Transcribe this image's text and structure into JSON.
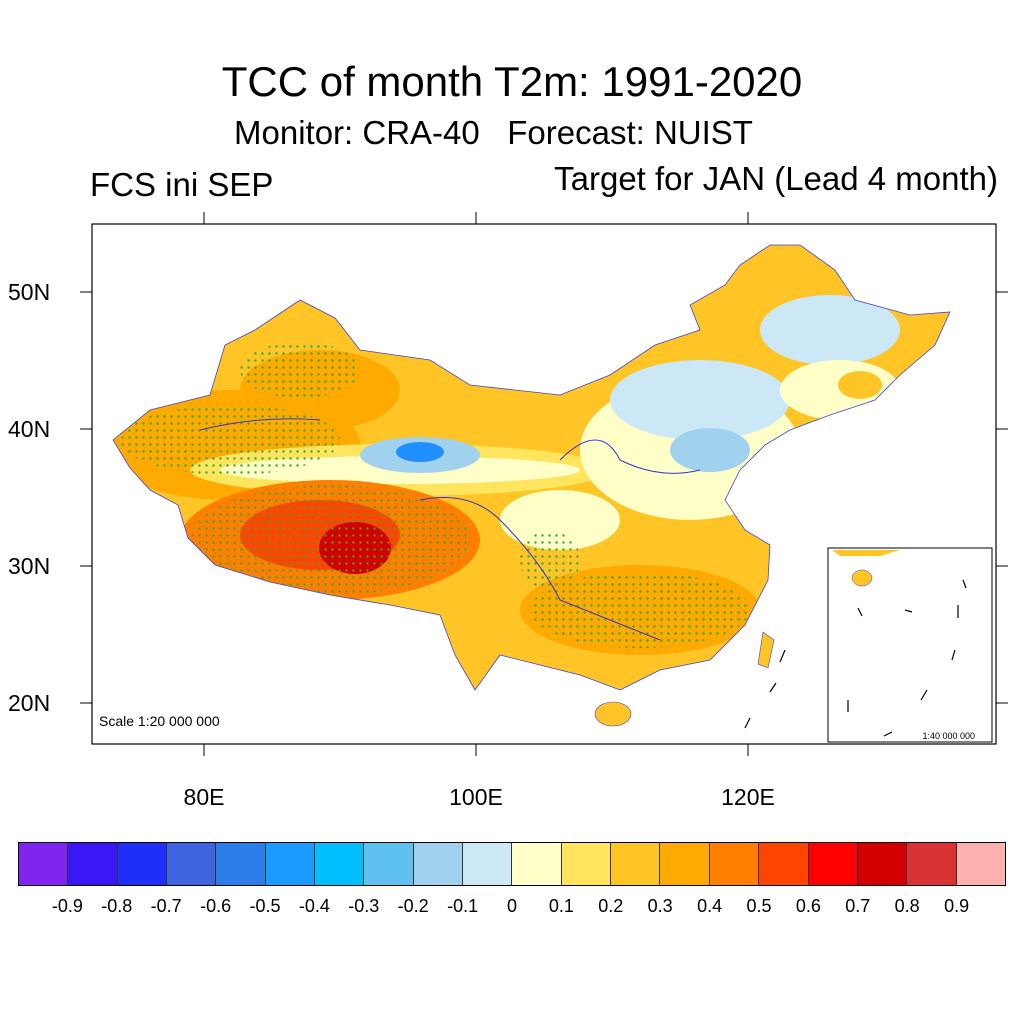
{
  "header": {
    "title": "TCC of month T2m: 1991-2020",
    "subtitle": "Monitor: CRA-40   Forecast: NUIST",
    "left_label": "FCS ini SEP",
    "right_label": "Target for JAN (Lead 4 month)"
  },
  "map": {
    "lat_labels": [
      "50N",
      "40N",
      "30N",
      "20N"
    ],
    "lon_labels": [
      "80E",
      "100E",
      "120E"
    ],
    "scale_text": "Scale 1:20 000 000",
    "inset_scale_text": "1:40 000 000",
    "colors": {
      "deep_red": "#d40000",
      "red_orange": "#ff4500",
      "orange": "#ff8000",
      "orange_light": "#ffaa00",
      "gold": "#ffc426",
      "yellow": "#ffe45e",
      "pale_yellow": "#ffffc8",
      "pale_blue": "#cce8f7",
      "light_blue": "#a0d2ef",
      "sky_blue": "#5fc1f0",
      "blue": "#1f8fff",
      "stipple": "#33aa33"
    }
  },
  "colorbar": {
    "colors": [
      "#8023ef",
      "#3b16f7",
      "#1f2ff7",
      "#3f64e0",
      "#2b7ee9",
      "#1b9aff",
      "#00bfff",
      "#5fc1f0",
      "#a0d2ef",
      "#cce8f7",
      "#ffffc8",
      "#ffe45e",
      "#ffc426",
      "#ffaa00",
      "#ff8000",
      "#ff4500",
      "#ff0000",
      "#d40000",
      "#d93232",
      "#ffb0b0"
    ],
    "labels": [
      "-0.9",
      "-0.8",
      "-0.7",
      "-0.6",
      "-0.5",
      "-0.4",
      "-0.3",
      "-0.2",
      "-0.1",
      "0",
      "0.1",
      "0.2",
      "0.3",
      "0.4",
      "0.5",
      "0.6",
      "0.7",
      "0.8",
      "0.9"
    ]
  }
}
